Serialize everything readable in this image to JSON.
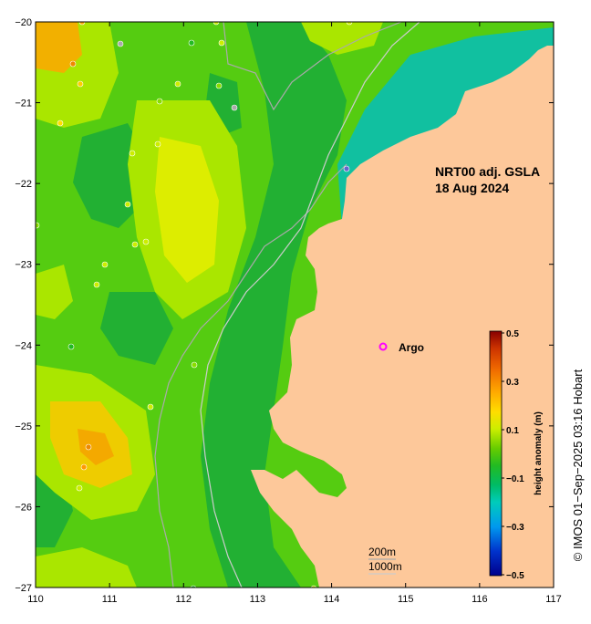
{
  "map": {
    "title_line1": "NRT00 adj. GSLA",
    "title_line2": "18 Aug 2024",
    "lon_range": [
      110,
      117
    ],
    "lat_range": [
      -27,
      -20
    ],
    "lon_ticks": [
      "110",
      "111",
      "112",
      "113",
      "114",
      "115",
      "116",
      "117"
    ],
    "lat_ticks": [
      "−20",
      "−21",
      "−22",
      "−23",
      "−24",
      "−25",
      "−26",
      "−27"
    ],
    "argo_label": "Argo",
    "argo_marker_color": "#ff00ff",
    "land_color": "#fdc89a",
    "scale_200": "200m",
    "scale_1000": "1000m",
    "copyright": "© IMOS 01−Sep−2025 03:16 Hobart"
  },
  "colorbar": {
    "title": "height anomaly (m)",
    "labels": [
      "0.5",
      "0.3",
      "0.1",
      "−0.1",
      "−0.3",
      "−0.5"
    ],
    "colors": [
      "#00008b",
      "#0044cc",
      "#0099ee",
      "#00ccbb",
      "#00cc88",
      "#00bb33",
      "#33cc00",
      "#88dd00",
      "#ccee00",
      "#eeee00",
      "#ffcc00",
      "#ff9900",
      "#ee6600",
      "#cc3300",
      "#8b0000"
    ]
  }
}
